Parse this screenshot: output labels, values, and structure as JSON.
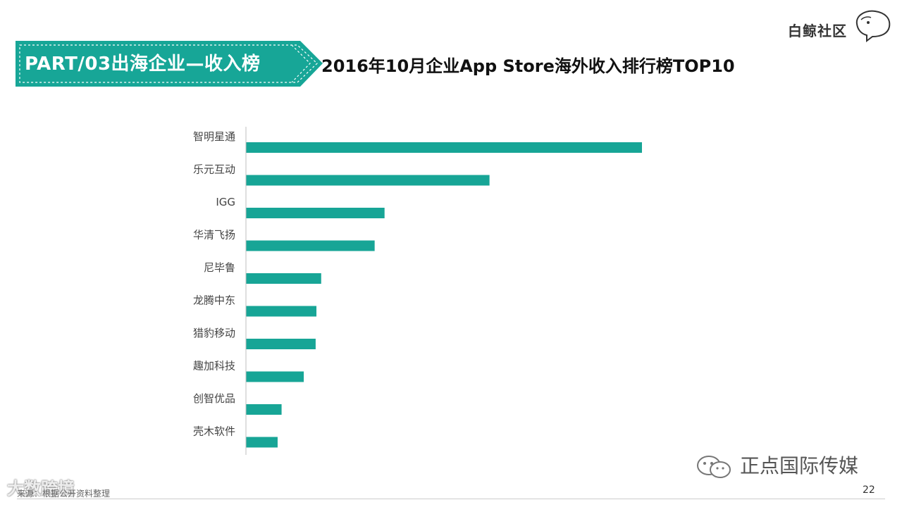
{
  "header": {
    "section_title": "PART/03出海企业—收入榜",
    "chart_title": "2016年10月企业App Store海外收入排行榜TOP10"
  },
  "logo": {
    "text": "白鲸社区",
    "icon": "whale-icon"
  },
  "colors": {
    "accent": "#16a394",
    "bar": "#17a596",
    "banner": "#17a697"
  },
  "chart_data": {
    "type": "bar",
    "orientation": "horizontal",
    "title": "2016年10月企业App Store海外收入排行榜TOP10",
    "categories": [
      "智明星通",
      "乐元互动",
      "IGG",
      "华清飞扬",
      "尼毕鲁",
      "龙腾中东",
      "猎豹移动",
      "趣加科技",
      "创智优品",
      "壳木软件"
    ],
    "values": [
      100,
      61.5,
      35,
      32.5,
      19,
      17.8,
      17.6,
      14.6,
      9,
      8
    ],
    "xlim": [
      0,
      100
    ],
    "grid": false,
    "legend": "none"
  },
  "footer": {
    "source": "来源：根据公开资料整理",
    "page_number": "22",
    "watermark_right": "正点国际传媒",
    "watermark_left": "大数跨境",
    "wechat_icon": "wechat-icon"
  }
}
